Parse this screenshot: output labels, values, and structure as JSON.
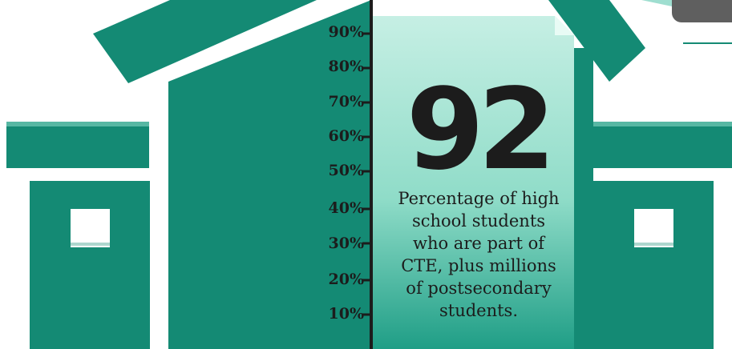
{
  "scale": {
    "labels": [
      "90%",
      "80%",
      "70%",
      "60%",
      "50%",
      "40%",
      "30%",
      "20%",
      "10%"
    ]
  },
  "stat": {
    "value": "92",
    "caption_lines": [
      "Percentage of high",
      "school students",
      "who are part of",
      "CTE, plus millions",
      "of postsecondary",
      "students."
    ]
  },
  "colors": {
    "teal": "#148a74",
    "teal_light": "#b8e9dc",
    "window": "#ffffff",
    "ink": "#1c1c1c",
    "corner_tab": "#5f5f5f"
  }
}
